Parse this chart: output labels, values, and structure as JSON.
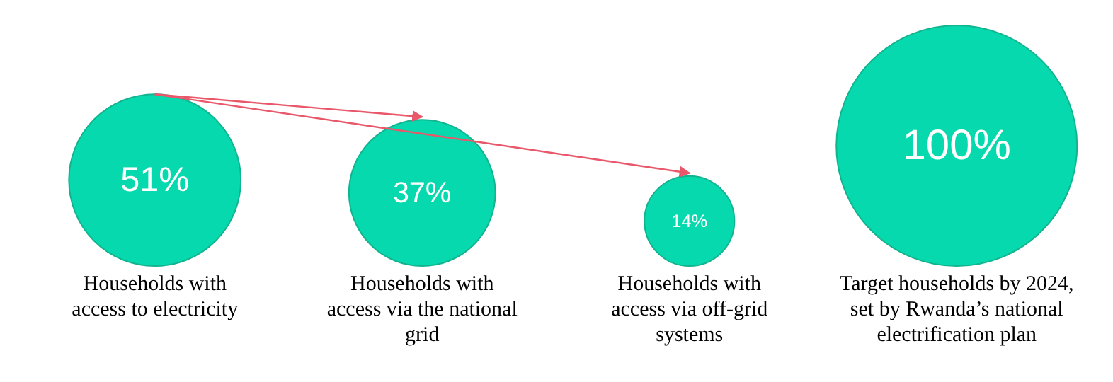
{
  "chart_data": {
    "type": "other",
    "categories": [
      "Households with access to electricity",
      "Households with access via the national grid",
      "Households with access via off-grid systems",
      "Target households by 2024, set by Rwanda’s national electrification plan"
    ],
    "values": [
      51,
      37,
      14,
      100
    ],
    "value_labels": [
      "51%",
      "37%",
      "14%",
      "100%"
    ],
    "color": "#06d9ae"
  }
}
